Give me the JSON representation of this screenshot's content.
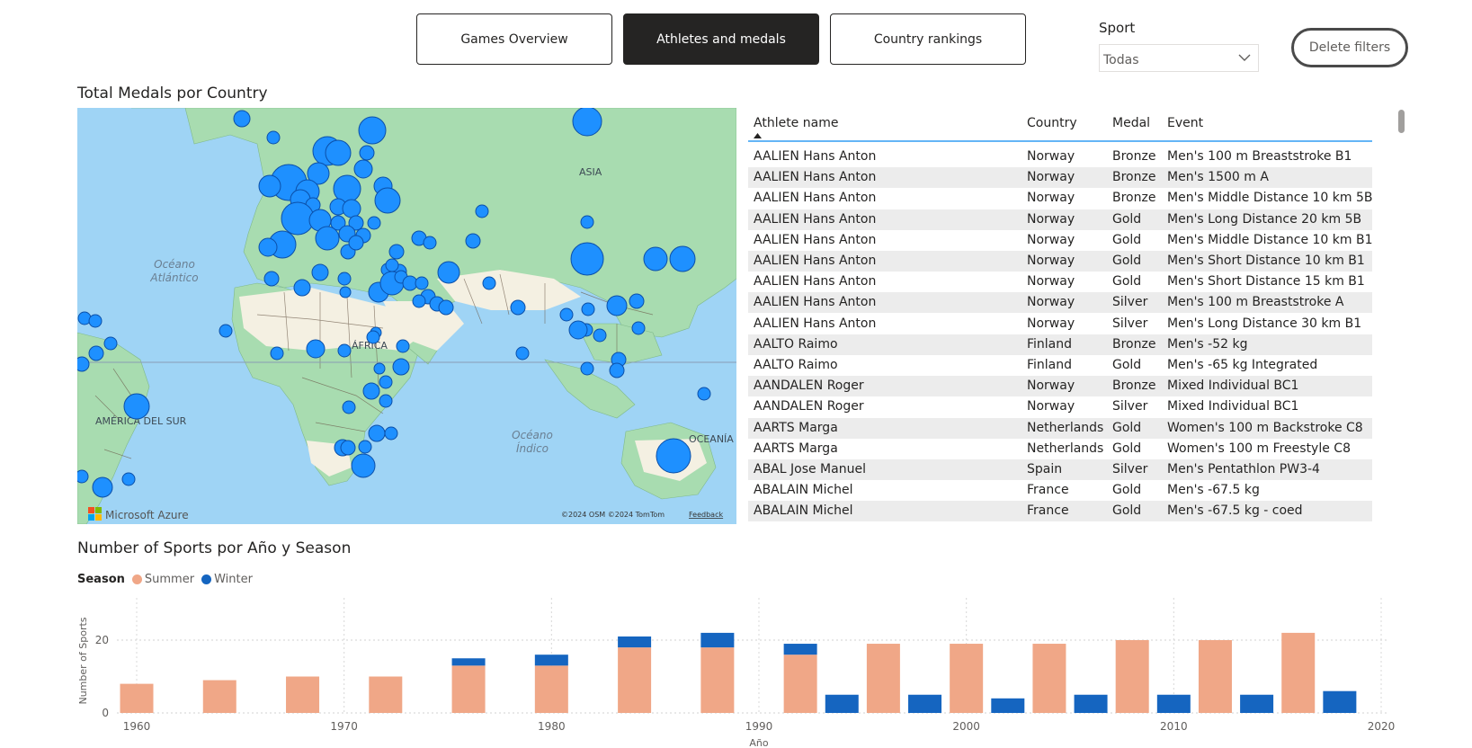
{
  "nav": {
    "games_overview": "Games Overview",
    "athletes_medals": "Athletes and medals",
    "country_rankings": "Country rankings"
  },
  "filter": {
    "label": "Sport",
    "selected": "Todas"
  },
  "delete_filters": "Delete filters",
  "map": {
    "title": "Total Medals por Country",
    "labels": {
      "atlantic": [
        "Océano",
        "Atlántico"
      ],
      "indian": [
        "Océano",
        "Índico"
      ],
      "asia": "ASIA",
      "africa": "ÁFRICA",
      "south_america": "AMÉRICA DEL SUR",
      "oceania": "OCEANÍA"
    },
    "attribution": "©2024 OSM  ©2024 TomTom",
    "feedback": "Feedback",
    "brand": "Microsoft Azure"
  },
  "table": {
    "headers": [
      "Athlete name",
      "Country",
      "Medal",
      "Event"
    ],
    "rows": [
      [
        "AALIEN Hans Anton",
        "Norway",
        "Bronze",
        "Men's 100 m Breaststroke B1"
      ],
      [
        "AALIEN Hans Anton",
        "Norway",
        "Bronze",
        "Men's 1500 m A"
      ],
      [
        "AALIEN Hans Anton",
        "Norway",
        "Bronze",
        "Men's Middle Distance 10 km 5B"
      ],
      [
        "AALIEN Hans Anton",
        "Norway",
        "Gold",
        "Men's Long Distance 20 km 5B"
      ],
      [
        "AALIEN Hans Anton",
        "Norway",
        "Gold",
        "Men's Middle Distance 10 km B1"
      ],
      [
        "AALIEN Hans Anton",
        "Norway",
        "Gold",
        "Men's Short Distance 10 km B1"
      ],
      [
        "AALIEN Hans Anton",
        "Norway",
        "Gold",
        "Men's Short Distance 15 km B1"
      ],
      [
        "AALIEN Hans Anton",
        "Norway",
        "Silver",
        "Men's 100 m Breaststroke A"
      ],
      [
        "AALIEN Hans Anton",
        "Norway",
        "Silver",
        "Men's Long Distance 30 km B1"
      ],
      [
        "AALTO Raimo",
        "Finland",
        "Bronze",
        "Men's -52 kg"
      ],
      [
        "AALTO Raimo",
        "Finland",
        "Gold",
        "Men's -65 kg Integrated"
      ],
      [
        "AANDALEN Roger",
        "Norway",
        "Bronze",
        "Mixed Individual BC1"
      ],
      [
        "AANDALEN Roger",
        "Norway",
        "Silver",
        "Mixed Individual BC1"
      ],
      [
        "AARTS Marga",
        "Netherlands",
        "Gold",
        "Women's 100 m Backstroke C8"
      ],
      [
        "AARTS Marga",
        "Netherlands",
        "Gold",
        "Women's 100 m Freestyle C8"
      ],
      [
        "ABAL Jose Manuel",
        "Spain",
        "Silver",
        "Men's Pentathlon PW3-4"
      ],
      [
        "ABALAIN Michel",
        "France",
        "Gold",
        "Men's -67.5 kg"
      ],
      [
        "ABALAIN Michel",
        "France",
        "Gold",
        "Men's -67.5 kg - coed"
      ]
    ]
  },
  "chart_data": {
    "type": "bar",
    "title": "Number of Sports por Año y Season",
    "xlabel": "Año",
    "ylabel": "Number of Sports",
    "legend_title": "Season",
    "legend_position": "top-left",
    "stacked": true,
    "x_ticks": [
      1960,
      1970,
      1980,
      1990,
      2000,
      2010,
      2020
    ],
    "y_ticks": [
      0,
      20
    ],
    "ylim": [
      0,
      22
    ],
    "xlim": [
      1958,
      2020
    ],
    "grid": true,
    "series": [
      {
        "name": "Summer",
        "color": "#f0a787",
        "points": [
          [
            1960,
            8
          ],
          [
            1964,
            9
          ],
          [
            1968,
            10
          ],
          [
            1972,
            10
          ],
          [
            1976,
            13
          ],
          [
            1980,
            13
          ],
          [
            1984,
            18
          ],
          [
            1988,
            18
          ],
          [
            1992,
            16
          ],
          [
            1996,
            19
          ],
          [
            2000,
            19
          ],
          [
            2004,
            19
          ],
          [
            2008,
            20
          ],
          [
            2012,
            20
          ],
          [
            2016,
            22
          ]
        ]
      },
      {
        "name": "Winter",
        "color": "#1565c0",
        "points": [
          [
            1976,
            2
          ],
          [
            1980,
            3
          ],
          [
            1984,
            3
          ],
          [
            1988,
            4
          ],
          [
            1992,
            3
          ],
          [
            1994,
            5
          ],
          [
            1998,
            5
          ],
          [
            2002,
            4
          ],
          [
            2006,
            5
          ],
          [
            2010,
            5
          ],
          [
            2014,
            5
          ],
          [
            2018,
            6
          ]
        ]
      }
    ]
  }
}
